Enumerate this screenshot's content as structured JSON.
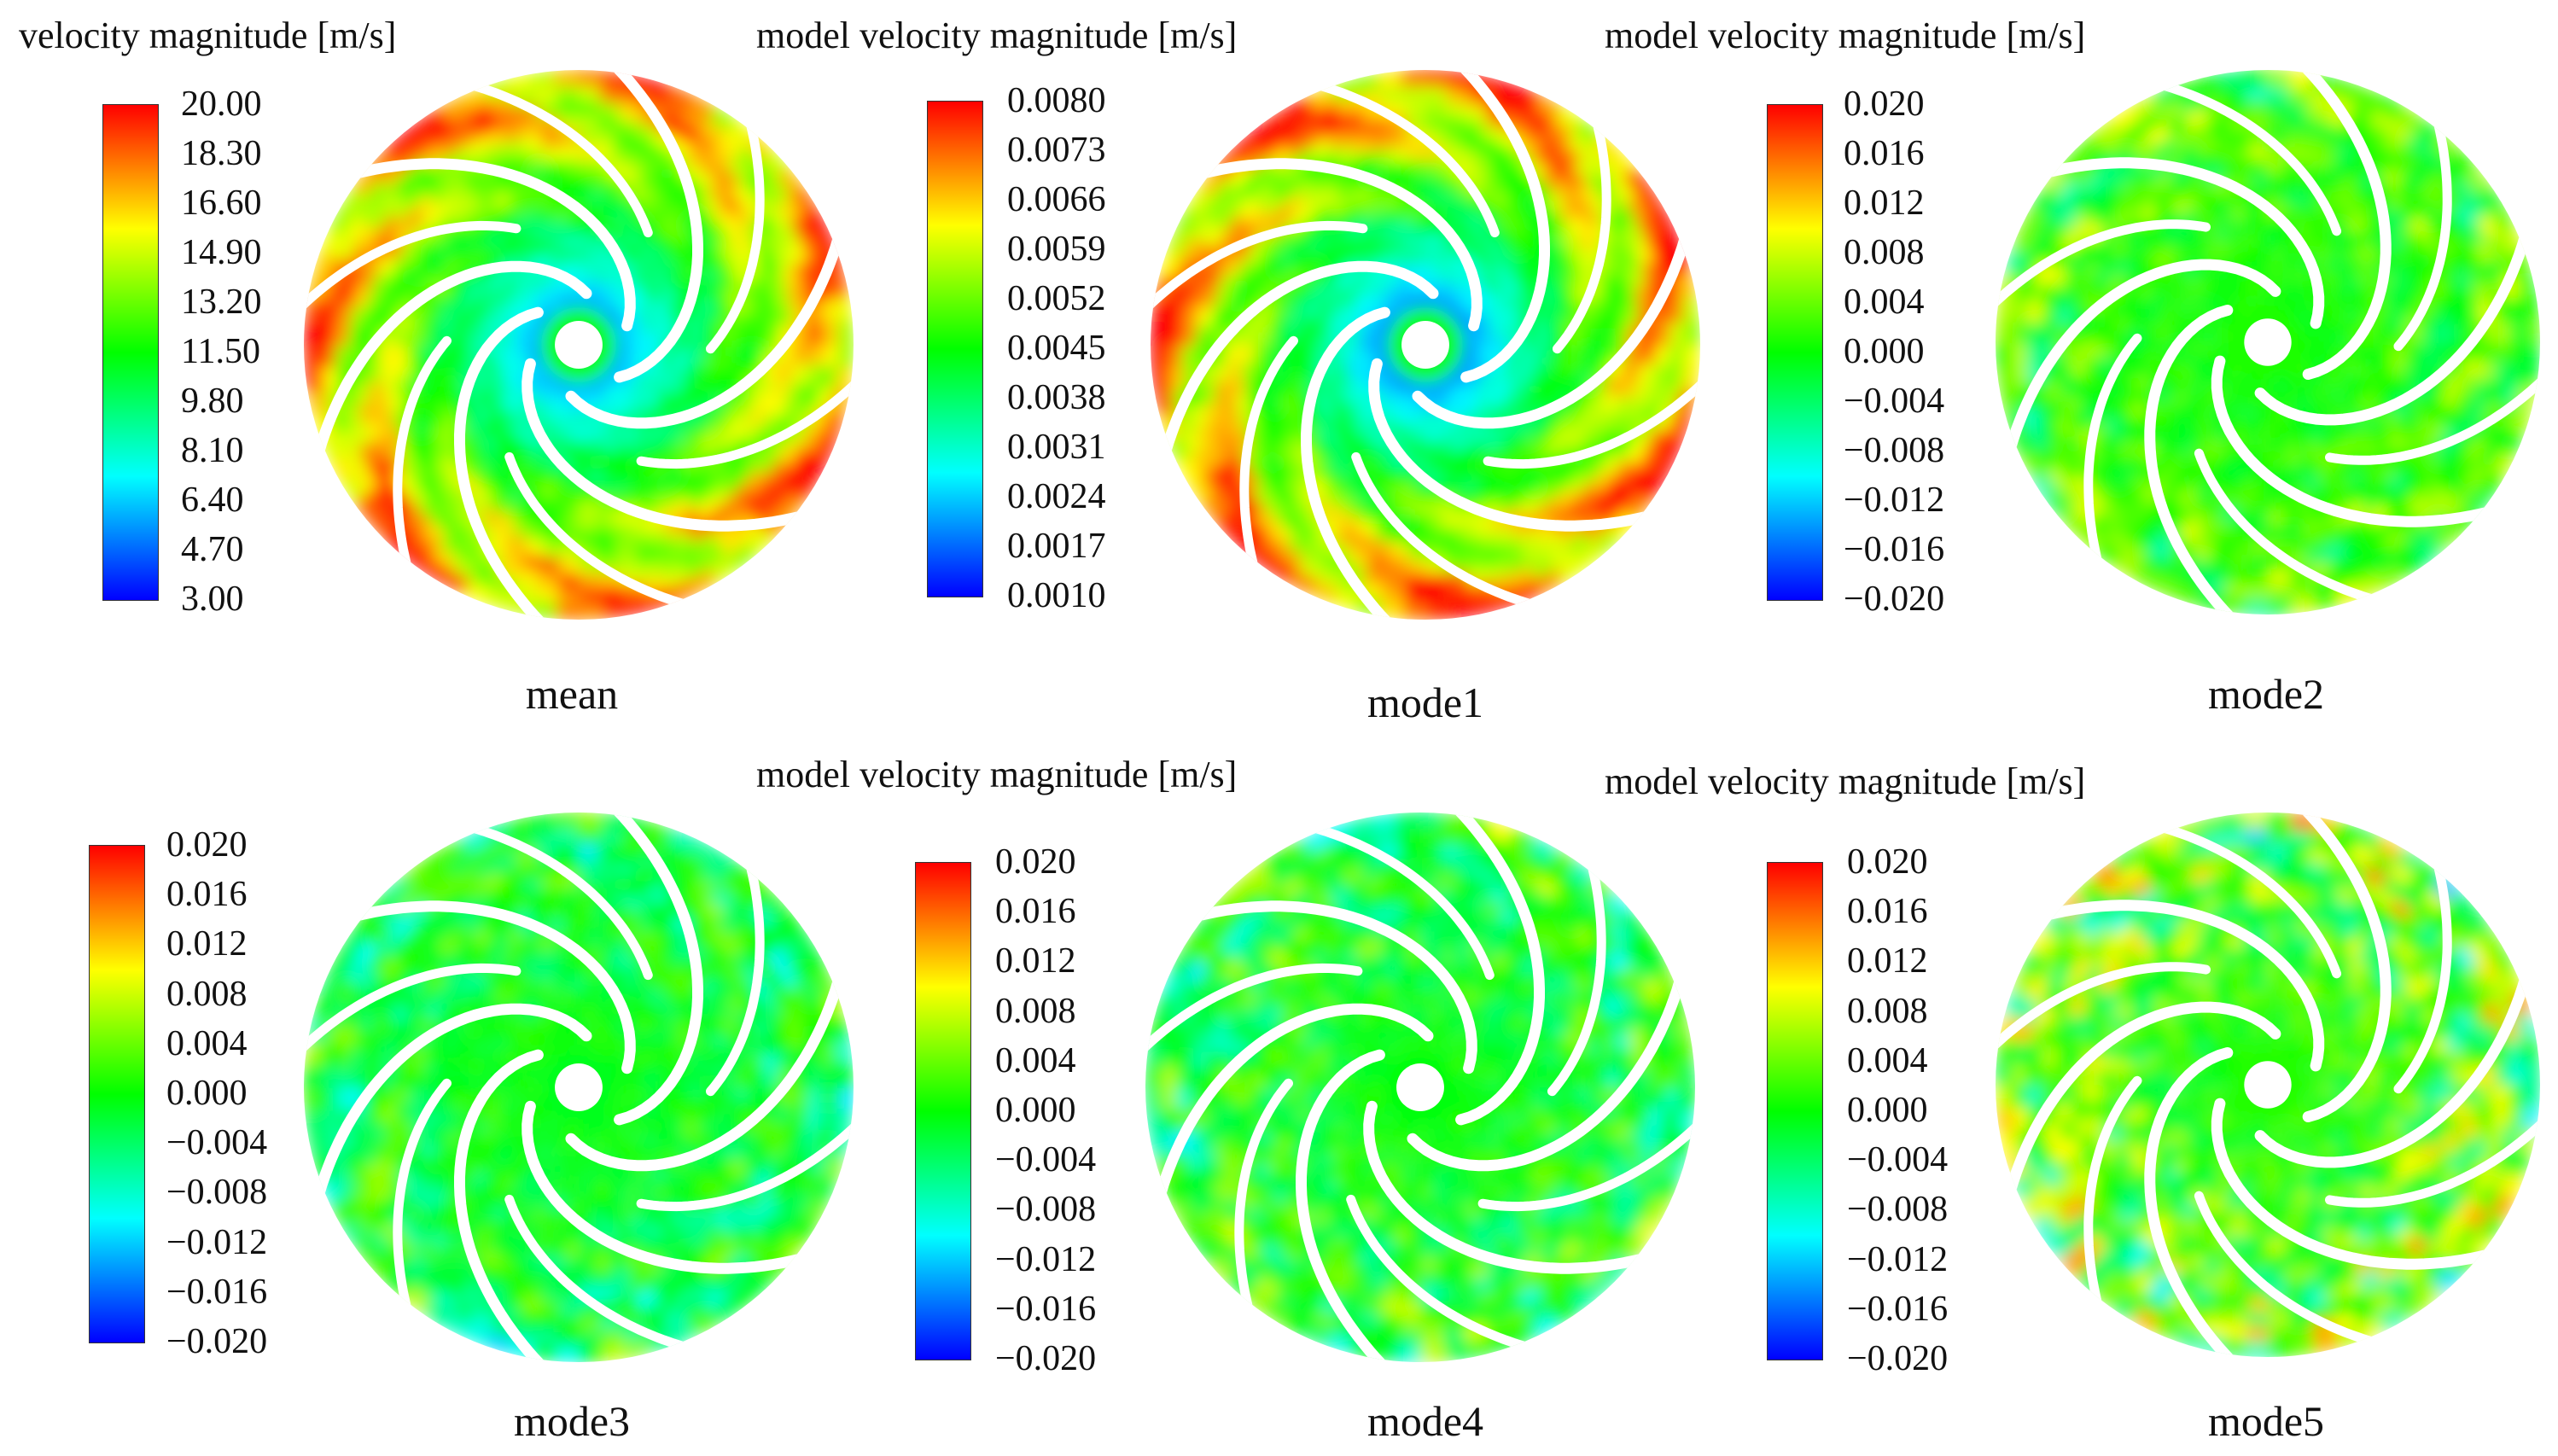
{
  "colorbar_gradient": [
    "#0000ff",
    "#00ffff",
    "#00ff00",
    "#ffff00",
    "#ff0000"
  ],
  "panels": [
    {
      "id": "mean",
      "title": "velocity  magnitude  [m/s]",
      "caption": "mean",
      "ticks": [
        "20.00",
        "18.30",
        "16.60",
        "14.90",
        "13.20",
        "11.50",
        "9.80",
        "8.10",
        "6.40",
        "4.70",
        "3.00"
      ],
      "field": {
        "hub": 0.15,
        "rim": 0.88,
        "noise": 0.06,
        "bladeWake": 0.18
      }
    },
    {
      "id": "mode1",
      "title": "model velocity magnitude [m/s]",
      "caption": "mode1",
      "ticks": [
        "0.0080",
        "0.0073",
        "0.0066",
        "0.0059",
        "0.0052",
        "0.0045",
        "0.0038",
        "0.0031",
        "0.0024",
        "0.0017",
        "0.0010"
      ],
      "field": {
        "hub": 0.12,
        "rim": 0.9,
        "noise": 0.05,
        "bladeWake": 0.2
      }
    },
    {
      "id": "mode2",
      "title": "model velocity magnitude [m/s]",
      "caption": "mode2",
      "ticks": [
        "0.020",
        "0.016",
        "0.012",
        "0.008",
        "0.004",
        "0.000",
        "−0.004",
        "−0.008",
        "−0.012",
        "−0.016",
        "−0.020"
      ],
      "field": {
        "hub": 0.5,
        "rim": 0.55,
        "noise": 0.12,
        "bladeWake": 0.1
      }
    },
    {
      "id": "mode3",
      "title": "",
      "caption": "mode3",
      "ticks": [
        "0.020",
        "0.016",
        "0.012",
        "0.008",
        "0.004",
        "0.000",
        "−0.004",
        "−0.008",
        "−0.012",
        "−0.016",
        "−0.020"
      ],
      "field": {
        "hub": 0.5,
        "rim": 0.45,
        "noise": 0.13,
        "bladeWake": 0.08
      }
    },
    {
      "id": "mode4",
      "title": "model velocity magnitude [m/s]",
      "caption": "mode4",
      "ticks": [
        "0.020",
        "0.016",
        "0.012",
        "0.008",
        "0.004",
        "0.000",
        "−0.004",
        "−0.008",
        "−0.012",
        "−0.016",
        "−0.020"
      ],
      "field": {
        "hub": 0.5,
        "rim": 0.48,
        "noise": 0.15,
        "bladeWake": 0.08
      }
    },
    {
      "id": "mode5",
      "title": "model velocity magnitude [m/s]",
      "caption": "mode5",
      "ticks": [
        "0.020",
        "0.016",
        "0.012",
        "0.008",
        "0.004",
        "0.000",
        "−0.004",
        "−0.008",
        "−0.012",
        "−0.016",
        "−0.020"
      ],
      "field": {
        "hub": 0.52,
        "rim": 0.55,
        "noise": 0.2,
        "bladeWake": 0.1
      }
    }
  ]
}
